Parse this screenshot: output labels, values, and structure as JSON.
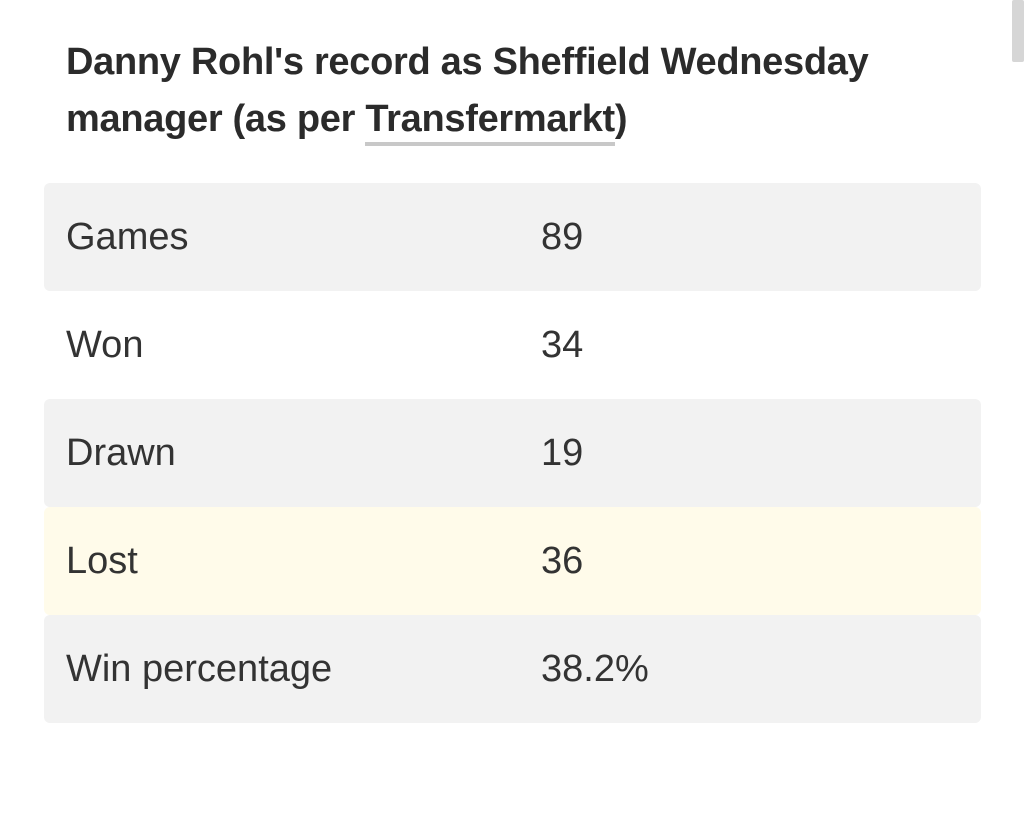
{
  "header": {
    "title_prefix": "Danny Rohl's record as Sheffield Wednesday manager (as per ",
    "source_link": "Transfermarkt",
    "title_suffix": ")"
  },
  "stats": [
    {
      "label": "Games",
      "value": "89"
    },
    {
      "label": "Won",
      "value": "34"
    },
    {
      "label": "Drawn",
      "value": "19"
    },
    {
      "label": "Lost",
      "value": "36"
    },
    {
      "label": "Win percentage",
      "value": "38.2%"
    }
  ],
  "colors": {
    "shaded_row": "#f2f2f2",
    "highlight_row": "#fffbea",
    "text": "#333333",
    "link_underline": "#c8c8c8"
  }
}
